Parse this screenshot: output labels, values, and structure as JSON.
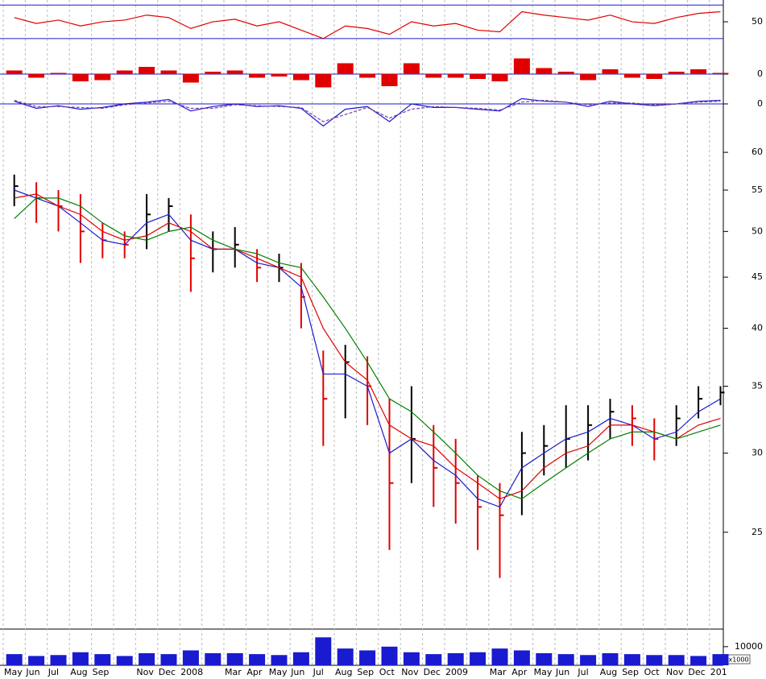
{
  "chart_data": [
    {
      "type": "line",
      "color": "#e00000",
      "ylim": [
        26,
        76
      ],
      "yticks": [
        50
      ],
      "reference_lines": [
        70,
        30
      ],
      "reference_color": "#1a1ad0",
      "values": [
        55,
        48,
        52,
        45,
        50,
        52,
        58,
        55,
        42,
        50,
        53,
        45,
        50,
        40,
        30,
        45,
        42,
        35,
        50,
        45,
        48,
        40,
        38,
        62,
        58,
        55,
        52,
        58,
        50,
        48,
        55,
        60,
        62
      ]
    },
    {
      "type": "histogram",
      "color": "#e00000",
      "ylim": [
        -2,
        2
      ],
      "yticks": [
        0
      ],
      "reference_lines": [
        0
      ],
      "reference_color": "#1a1ad0",
      "values": [
        0.3,
        -0.3,
        0.1,
        -0.6,
        -0.5,
        0.3,
        0.6,
        0.3,
        -0.7,
        0.2,
        0.3,
        -0.3,
        -0.2,
        -0.5,
        -1.1,
        0.9,
        -0.3,
        -1.0,
        0.9,
        -0.3,
        -0.3,
        -0.4,
        -0.6,
        1.3,
        0.5,
        0.2,
        -0.5,
        0.4,
        -0.3,
        -0.4,
        0.2,
        0.4,
        0.1
      ]
    },
    {
      "type": "line",
      "ylim": [
        -3,
        1
      ],
      "yticks": [
        0
      ],
      "reference_lines": [
        0
      ],
      "reference_color": "#1a1ad0",
      "series": [
        {
          "color": "#1a1ad0",
          "dashed": false,
          "values": [
            0.3,
            -0.5,
            -0.2,
            -0.6,
            -0.4,
            0,
            0.2,
            0.5,
            -0.8,
            -0.3,
            0,
            -0.3,
            -0.2,
            -0.5,
            -2.5,
            -0.6,
            -0.3,
            -2,
            0,
            -0.4,
            -0.4,
            -0.6,
            -0.8,
            0.6,
            0.3,
            0.2,
            -0.3,
            0.3,
            0,
            -0.2,
            0,
            0.3,
            0.4
          ]
        },
        {
          "color": "#8040a0",
          "dashed": true,
          "values": [
            0.4,
            -0.3,
            -0.3,
            -0.4,
            -0.5,
            -0.1,
            0.1,
            0.3,
            -0.5,
            -0.5,
            -0.1,
            -0.2,
            -0.3,
            -0.4,
            -2,
            -1.2,
            -0.4,
            -1.6,
            -0.6,
            -0.3,
            -0.4,
            -0.5,
            -0.7,
            0.2,
            0.4,
            0.2,
            -0.1,
            0.1,
            0.1,
            -0.1,
            0,
            0.2,
            0.3
          ]
        }
      ]
    },
    {
      "type": "ohlc",
      "log_scale": true,
      "ylim": [
        20,
        65
      ],
      "yticks": [
        25,
        30,
        35,
        40,
        45,
        50,
        55,
        60
      ],
      "up_color": "#000000",
      "down_color": "#e00000",
      "high": [
        57,
        56,
        55,
        54.5,
        51,
        50,
        54.5,
        54,
        52,
        50,
        50.5,
        48,
        47.5,
        46.5,
        38,
        38.5,
        37.5,
        34,
        35,
        32,
        31,
        28.5,
        28,
        31.5,
        32,
        33.5,
        33.5,
        34,
        33.5,
        32.5,
        33.5,
        35,
        35
      ],
      "low": [
        53,
        51,
        50,
        46.5,
        47,
        47,
        48,
        50,
        43.5,
        45.5,
        46,
        44.5,
        44.5,
        40,
        30.5,
        32.5,
        32,
        24,
        28,
        26.5,
        25.5,
        24,
        22.5,
        26,
        28.5,
        29,
        29.5,
        31,
        30.5,
        29.5,
        30.5,
        32.5,
        33.5
      ],
      "close": [
        55.5,
        54,
        53,
        50,
        49,
        48.5,
        52,
        53,
        47,
        48,
        48.5,
        46,
        46,
        43,
        34,
        37,
        35,
        28,
        31,
        29,
        28,
        26.5,
        26,
        30,
        30.5,
        31,
        32,
        33,
        32.5,
        31,
        32.5,
        34,
        34.5
      ],
      "moving_averages": [
        {
          "color": "#1a1ad0",
          "values": [
            55,
            54,
            53,
            51,
            49,
            48.5,
            51,
            52,
            49,
            48,
            48,
            46.5,
            46,
            44,
            36,
            36,
            35,
            30,
            31,
            29.5,
            28.5,
            27,
            26.5,
            29,
            30,
            31,
            31.5,
            32.5,
            32,
            31,
            31.5,
            33,
            34
          ]
        },
        {
          "color": "#e00000",
          "values": [
            54,
            54.5,
            53,
            52,
            50,
            49,
            49.5,
            51,
            50,
            48,
            48,
            47,
            46,
            45,
            40,
            37,
            35.5,
            32,
            31,
            30.5,
            29,
            28,
            27,
            27.5,
            29,
            30,
            30.5,
            32,
            32,
            31.5,
            31,
            32,
            32.5
          ]
        },
        {
          "color": "#008000",
          "values": [
            51.5,
            54,
            54,
            53,
            51,
            49.5,
            49,
            50,
            50.5,
            49,
            48,
            47.5,
            46.5,
            46,
            43,
            40,
            37,
            34,
            33,
            31.5,
            30,
            28.5,
            27.5,
            27,
            28,
            29,
            30,
            31,
            31.5,
            31.5,
            31,
            31.5,
            32
          ]
        }
      ]
    },
    {
      "type": "bar",
      "color": "#1a1ad0",
      "ylim": [
        0,
        19000
      ],
      "yticks": [
        10000
      ],
      "unit_label": "x1000",
      "categories": [
        "May",
        "Jun",
        "Jul",
        "Aug",
        "Sep",
        null,
        "Nov",
        "Dec",
        "2008",
        null,
        "Mar",
        "Apr",
        "May",
        "Jun",
        "Jul",
        "Aug",
        "Sep",
        "Oct",
        "Nov",
        "Dec",
        "2009",
        null,
        "Mar",
        "Apr",
        "May",
        "Jun",
        "Jul",
        "Aug",
        "Sep",
        "Oct",
        "Nov",
        "Dec",
        "201"
      ],
      "values": [
        6000,
        5000,
        5500,
        7000,
        6000,
        5000,
        6500,
        6000,
        8000,
        6500,
        6500,
        6000,
        5500,
        7000,
        15000,
        9000,
        8000,
        10000,
        7000,
        6000,
        6500,
        7000,
        9000,
        8000,
        6500,
        6000,
        5500,
        6500,
        6000,
        5500,
        5500,
        5000,
        6000
      ]
    }
  ]
}
